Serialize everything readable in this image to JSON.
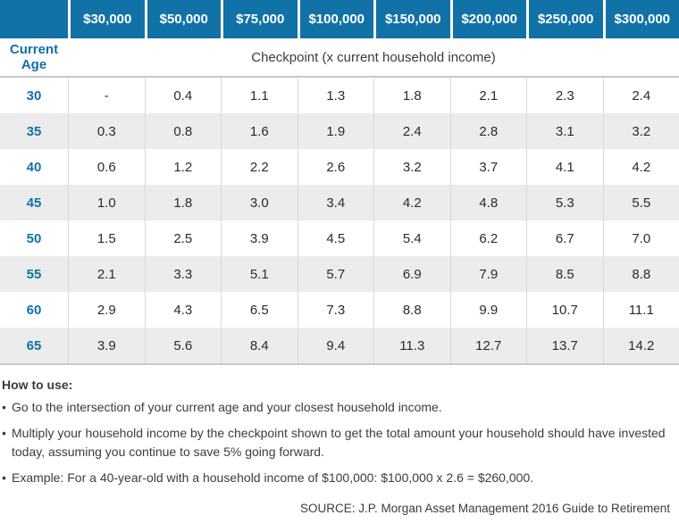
{
  "colors": {
    "header_blue": "#1172a7",
    "stripe_gray": "#ececec",
    "border_gray": "#c9c9c9",
    "text_dark": "#2f2f2f"
  },
  "table": {
    "income_headers": [
      "$30,000",
      "$50,000",
      "$75,000",
      "$100,000",
      "$150,000",
      "$200,000",
      "$250,000",
      "$300,000"
    ],
    "row_header": {
      "line1": "Current",
      "line2": "Age"
    },
    "subtitle": "Checkpoint (x current household income)",
    "rows": [
      {
        "age": "30",
        "values": [
          "-",
          "0.4",
          "1.1",
          "1.3",
          "1.8",
          "2.1",
          "2.3",
          "2.4"
        ]
      },
      {
        "age": "35",
        "values": [
          "0.3",
          "0.8",
          "1.6",
          "1.9",
          "2.4",
          "2.8",
          "3.1",
          "3.2"
        ]
      },
      {
        "age": "40",
        "values": [
          "0.6",
          "1.2",
          "2.2",
          "2.6",
          "3.2",
          "3.7",
          "4.1",
          "4.2"
        ]
      },
      {
        "age": "45",
        "values": [
          "1.0",
          "1.8",
          "3.0",
          "3.4",
          "4.2",
          "4.8",
          "5.3",
          "5.5"
        ]
      },
      {
        "age": "50",
        "values": [
          "1.5",
          "2.5",
          "3.9",
          "4.5",
          "5.4",
          "6.2",
          "6.7",
          "7.0"
        ]
      },
      {
        "age": "55",
        "values": [
          "2.1",
          "3.3",
          "5.1",
          "5.7",
          "6.9",
          "7.9",
          "8.5",
          "8.8"
        ]
      },
      {
        "age": "60",
        "values": [
          "2.9",
          "4.3",
          "6.5",
          "7.3",
          "8.8",
          "9.9",
          "10.7",
          "11.1"
        ]
      },
      {
        "age": "65",
        "values": [
          "3.9",
          "5.6",
          "8.4",
          "9.4",
          "11.3",
          "12.7",
          "13.7",
          "14.2"
        ]
      }
    ]
  },
  "notes": {
    "heading": "How to use:",
    "bullet_glyph": "•",
    "bullets": [
      "Go to the intersection of your current age and your closest household income.",
      "Multiply your household income by the checkpoint shown to get the total amount your household should have invested today, assuming you continue to save 5% going forward.",
      "Example: For a 40-year-old with a household income of $100,000: $100,000 x 2.6 = $260,000."
    ]
  },
  "source": "SOURCE: J.P. Morgan Asset Management 2016 Guide to Retirement",
  "chart_data": {
    "type": "table",
    "title": "Retirement savings checkpoints",
    "subtitle": "Checkpoint (x current household income)",
    "columns": [
      "Current Age",
      "$30,000",
      "$50,000",
      "$75,000",
      "$100,000",
      "$150,000",
      "$200,000",
      "$250,000",
      "$300,000"
    ],
    "rows": [
      [
        "30",
        "-",
        0.4,
        1.1,
        1.3,
        1.8,
        2.1,
        2.3,
        2.4
      ],
      [
        "35",
        0.3,
        0.8,
        1.6,
        1.9,
        2.4,
        2.8,
        3.1,
        3.2
      ],
      [
        "40",
        0.6,
        1.2,
        2.2,
        2.6,
        3.2,
        3.7,
        4.1,
        4.2
      ],
      [
        "45",
        1.0,
        1.8,
        3.0,
        3.4,
        4.2,
        4.8,
        5.3,
        5.5
      ],
      [
        "50",
        1.5,
        2.5,
        3.9,
        4.5,
        5.4,
        6.2,
        6.7,
        7.0
      ],
      [
        "55",
        2.1,
        3.3,
        5.1,
        5.7,
        6.9,
        7.9,
        8.5,
        8.8
      ],
      [
        "60",
        2.9,
        4.3,
        6.5,
        7.3,
        8.8,
        9.9,
        10.7,
        11.1
      ],
      [
        "65",
        3.9,
        5.6,
        8.4,
        9.4,
        11.3,
        12.7,
        13.7,
        14.2
      ]
    ],
    "layout": {
      "striped_rows": true,
      "grid": "vertical-only",
      "legend": "none"
    }
  }
}
